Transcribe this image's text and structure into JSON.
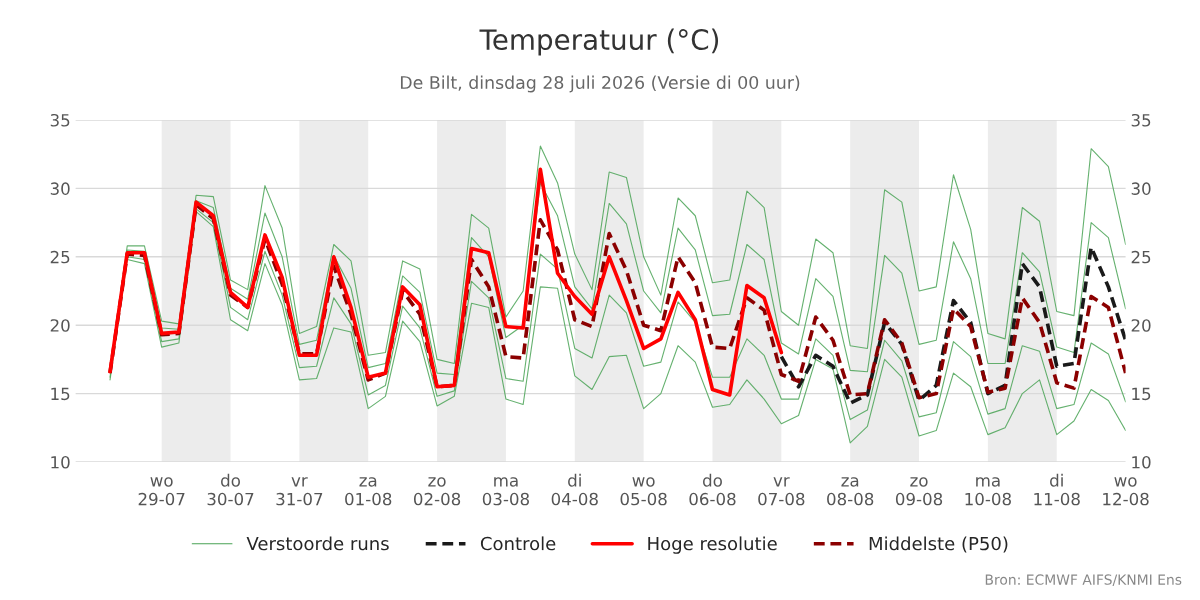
{
  "chart_data": {
    "type": "line",
    "title": "Temperatuur (°C)",
    "subtitle": "De Bilt, dinsdag 28 juli 2026 (Versie di 00 uur)",
    "x": [
      "2026-07-28T06:00",
      "2026-07-28T12:00",
      "2026-07-28T18:00",
      "2026-07-29T00:00",
      "2026-07-29T06:00",
      "2026-07-29T12:00",
      "2026-07-29T18:00",
      "2026-07-30T00:00",
      "2026-07-30T06:00",
      "2026-07-30T12:00",
      "2026-07-30T18:00",
      "2026-07-31T00:00",
      "2026-07-31T06:00",
      "2026-07-31T12:00",
      "2026-07-31T18:00",
      "2026-08-01T00:00",
      "2026-08-01T06:00",
      "2026-08-01T12:00",
      "2026-08-01T18:00",
      "2026-08-02T00:00",
      "2026-08-02T06:00",
      "2026-08-02T12:00",
      "2026-08-02T18:00",
      "2026-08-03T00:00",
      "2026-08-03T06:00",
      "2026-08-03T12:00",
      "2026-08-03T18:00",
      "2026-08-04T00:00",
      "2026-08-04T06:00",
      "2026-08-04T12:00",
      "2026-08-04T18:00",
      "2026-08-05T00:00",
      "2026-08-05T06:00",
      "2026-08-05T12:00",
      "2026-08-05T18:00",
      "2026-08-06T00:00",
      "2026-08-06T06:00",
      "2026-08-06T12:00",
      "2026-08-06T18:00",
      "2026-08-07T00:00",
      "2026-08-07T06:00",
      "2026-08-07T12:00",
      "2026-08-07T18:00",
      "2026-08-08T00:00",
      "2026-08-08T06:00",
      "2026-08-08T12:00",
      "2026-08-08T18:00",
      "2026-08-09T00:00",
      "2026-08-09T06:00",
      "2026-08-09T12:00",
      "2026-08-09T18:00",
      "2026-08-10T00:00",
      "2026-08-10T06:00",
      "2026-08-10T12:00",
      "2026-08-10T18:00",
      "2026-08-11T00:00",
      "2026-08-11T06:00",
      "2026-08-11T12:00",
      "2026-08-11T18:00",
      "2026-08-12T00:00"
    ],
    "series": [
      {
        "name": "Verstoorde runs",
        "color": "#4aa356",
        "values": [
          16.8,
          25.8,
          25.8,
          20.3,
          20.1,
          29.5,
          29.4,
          23.3,
          22.6,
          30.2,
          27.1,
          19.4,
          19.9,
          25.9,
          24.7,
          17.8,
          18.0,
          24.7,
          24.1,
          17.5,
          17.2,
          28.1,
          27.1,
          20.6,
          22.5,
          33.1,
          30.4,
          25.2,
          22.6,
          31.2,
          30.8,
          25.0,
          22.2,
          29.3,
          28.0,
          23.1,
          23.3,
          29.8,
          28.6,
          21.0,
          20.0,
          26.3,
          25.3,
          18.5,
          18.3,
          29.9,
          29.0,
          22.5,
          22.8,
          31.0,
          27.0,
          19.4,
          19.0,
          28.6,
          27.6,
          21.0,
          20.7,
          32.9,
          31.6,
          25.9
        ]
      },
      {
        "color": "#4aa356",
        "values": [
          16.0,
          24.8,
          24.5,
          18.4,
          18.7,
          28.3,
          27.2,
          20.4,
          19.6,
          24.5,
          21.5,
          16.0,
          16.1,
          19.8,
          19.5,
          13.9,
          14.8,
          20.3,
          18.8,
          14.1,
          14.8,
          21.6,
          21.3,
          14.6,
          14.2,
          22.8,
          22.7,
          16.3,
          15.3,
          17.7,
          17.8,
          13.9,
          15.0,
          18.5,
          17.3,
          14.0,
          14.2,
          16.0,
          14.6,
          12.8,
          13.4,
          17.5,
          16.8,
          11.4,
          12.6,
          17.5,
          16.2,
          11.9,
          12.3,
          16.5,
          15.5,
          12.0,
          12.5,
          15.0,
          16.0,
          12.0,
          13.0,
          15.3,
          14.5,
          12.3
        ]
      },
      {
        "color": "#4aa356",
        "values": [
          16.6,
          25.5,
          25.4,
          19.8,
          19.7,
          29.1,
          28.6,
          22.7,
          21.9,
          28.2,
          25.0,
          18.6,
          18.9,
          25.1,
          22.7,
          16.9,
          17.2,
          23.6,
          22.4,
          16.5,
          16.4,
          26.4,
          25.0,
          19.1,
          20.0,
          30.4,
          28.0,
          22.8,
          21.2,
          28.9,
          27.4,
          22.5,
          20.9,
          27.1,
          25.5,
          20.7,
          20.8,
          25.9,
          24.8,
          18.7,
          17.9,
          23.4,
          22.1,
          16.7,
          16.6,
          25.1,
          23.8,
          18.6,
          18.9,
          26.1,
          23.4,
          17.2,
          17.2,
          25.3,
          23.9,
          18.4,
          18.0,
          27.5,
          26.4,
          21.2
        ]
      },
      {
        "color": "#4aa356",
        "values": [
          16.2,
          25.0,
          24.8,
          18.8,
          19.0,
          28.5,
          27.5,
          21.3,
          20.4,
          25.4,
          22.2,
          16.9,
          17.0,
          22.0,
          20.1,
          14.9,
          15.6,
          21.4,
          19.8,
          14.8,
          15.2,
          23.2,
          22.0,
          16.1,
          15.9,
          25.2,
          24.1,
          18.3,
          17.6,
          22.2,
          20.9,
          17.0,
          17.3,
          21.7,
          20.2,
          16.2,
          16.2,
          19.0,
          17.8,
          14.6,
          14.6,
          19.0,
          17.8,
          13.1,
          13.8,
          18.9,
          17.4,
          13.3,
          13.6,
          18.8,
          17.7,
          13.5,
          13.9,
          18.5,
          18.1,
          13.9,
          14.2,
          18.7,
          17.9,
          14.4
        ]
      },
      {
        "name": "Controle",
        "color": "#1a1a1a",
        "line_style": "dashed",
        "values": [
          null,
          null,
          null,
          null,
          null,
          null,
          null,
          null,
          null,
          null,
          null,
          null,
          null,
          null,
          null,
          null,
          null,
          null,
          null,
          null,
          null,
          null,
          null,
          null,
          null,
          null,
          null,
          null,
          null,
          null,
          null,
          null,
          null,
          null,
          null,
          null,
          null,
          null,
          null,
          17.7,
          15.5,
          17.8,
          17.0,
          14.3,
          14.9,
          20.2,
          18.6,
          14.5,
          15.6,
          21.8,
          20.2,
          15.0,
          15.6,
          24.5,
          22.8,
          17.0,
          17.2,
          25.7,
          22.8,
          18.9
        ]
      },
      {
        "name": "Hoge resolutie",
        "color": "#ff0000",
        "line_style": "solid",
        "values": [
          16.6,
          25.3,
          25.3,
          19.4,
          19.5,
          29.0,
          28.0,
          22.4,
          21.3,
          26.6,
          23.5,
          17.8,
          17.8,
          25.0,
          21.3,
          16.2,
          16.5,
          22.8,
          21.5,
          15.5,
          15.6,
          25.6,
          25.3,
          19.9,
          19.8,
          31.4,
          23.8,
          22.1,
          20.8,
          25.0,
          21.8,
          18.3,
          19.0,
          22.4,
          20.4,
          15.3,
          14.9,
          22.9,
          22.0,
          18.0,
          null,
          null,
          null,
          null,
          null,
          null,
          null,
          null,
          null,
          null,
          null,
          null,
          null,
          null,
          null,
          null,
          null,
          null,
          null,
          null
        ]
      },
      {
        "name": "Middelste (P50)",
        "color": "#8b0000",
        "line_style": "dashed",
        "values": [
          16.5,
          25.2,
          25.1,
          19.3,
          19.4,
          28.8,
          27.8,
          22.2,
          21.3,
          26.3,
          23.0,
          17.9,
          17.9,
          24.3,
          20.8,
          16.0,
          16.5,
          22.5,
          20.8,
          15.5,
          15.6,
          24.8,
          22.8,
          17.7,
          17.6,
          27.7,
          25.5,
          20.4,
          19.9,
          26.7,
          24.0,
          20.0,
          19.6,
          25.0,
          23.1,
          18.4,
          18.3,
          22.0,
          21.1,
          16.4,
          15.9,
          20.6,
          18.9,
          14.9,
          15.0,
          20.4,
          18.7,
          14.7,
          15.0,
          21.2,
          19.9,
          15.1,
          15.4,
          22.0,
          20.2,
          15.8,
          15.4,
          22.1,
          21.3,
          16.5
        ]
      }
    ],
    "xlim": [
      "2026-07-27T18:00",
      "2026-08-12T00:00"
    ],
    "xticks": [
      {
        "value": "2026-07-29",
        "label": "wo\n29-07"
      },
      {
        "value": "2026-07-30",
        "label": "do\n30-07"
      },
      {
        "value": "2026-07-31",
        "label": "vr\n31-07"
      },
      {
        "value": "2026-08-01",
        "label": "za\n01-08"
      },
      {
        "value": "2026-08-02",
        "label": "zo\n02-08"
      },
      {
        "value": "2026-08-03",
        "label": "ma\n03-08"
      },
      {
        "value": "2026-08-04",
        "label": "di\n04-08"
      },
      {
        "value": "2026-08-05",
        "label": "wo\n05-08"
      },
      {
        "value": "2026-08-06",
        "label": "do\n06-08"
      },
      {
        "value": "2026-08-07",
        "label": "vr\n07-08"
      },
      {
        "value": "2026-08-08",
        "label": "za\n08-08"
      },
      {
        "value": "2026-08-09",
        "label": "zo\n09-08"
      },
      {
        "value": "2026-08-10",
        "label": "ma\n10-08"
      },
      {
        "value": "2026-08-11",
        "label": "di\n11-08"
      },
      {
        "value": "2026-08-12",
        "label": "wo\n12-08"
      }
    ],
    "ylim": [
      10,
      35
    ],
    "yticks": [
      10,
      15,
      20,
      25,
      30,
      35
    ],
    "y2lim": [
      10,
      35
    ],
    "y2ticks": [
      10,
      15,
      20,
      25,
      30,
      35
    ],
    "bands": [
      {
        "axis": "x",
        "from": "2026-07-29",
        "to": "2026-07-30",
        "color": "#ececec"
      },
      {
        "axis": "x",
        "from": "2026-07-31",
        "to": "2026-08-01",
        "color": "#ececec"
      },
      {
        "axis": "x",
        "from": "2026-08-02",
        "to": "2026-08-03",
        "color": "#ececec"
      },
      {
        "axis": "x",
        "from": "2026-08-04",
        "to": "2026-08-05",
        "color": "#ececec"
      },
      {
        "axis": "x",
        "from": "2026-08-06",
        "to": "2026-08-07",
        "color": "#ececec"
      },
      {
        "axis": "x",
        "from": "2026-08-08",
        "to": "2026-08-09",
        "color": "#ececec"
      },
      {
        "axis": "x",
        "from": "2026-08-10",
        "to": "2026-08-11",
        "color": "#ececec"
      }
    ],
    "grid": "y",
    "legend": "bottom",
    "marker": "none",
    "annotations": [
      "Bron: ECMWF AIFS/KNMI Ens"
    ]
  }
}
